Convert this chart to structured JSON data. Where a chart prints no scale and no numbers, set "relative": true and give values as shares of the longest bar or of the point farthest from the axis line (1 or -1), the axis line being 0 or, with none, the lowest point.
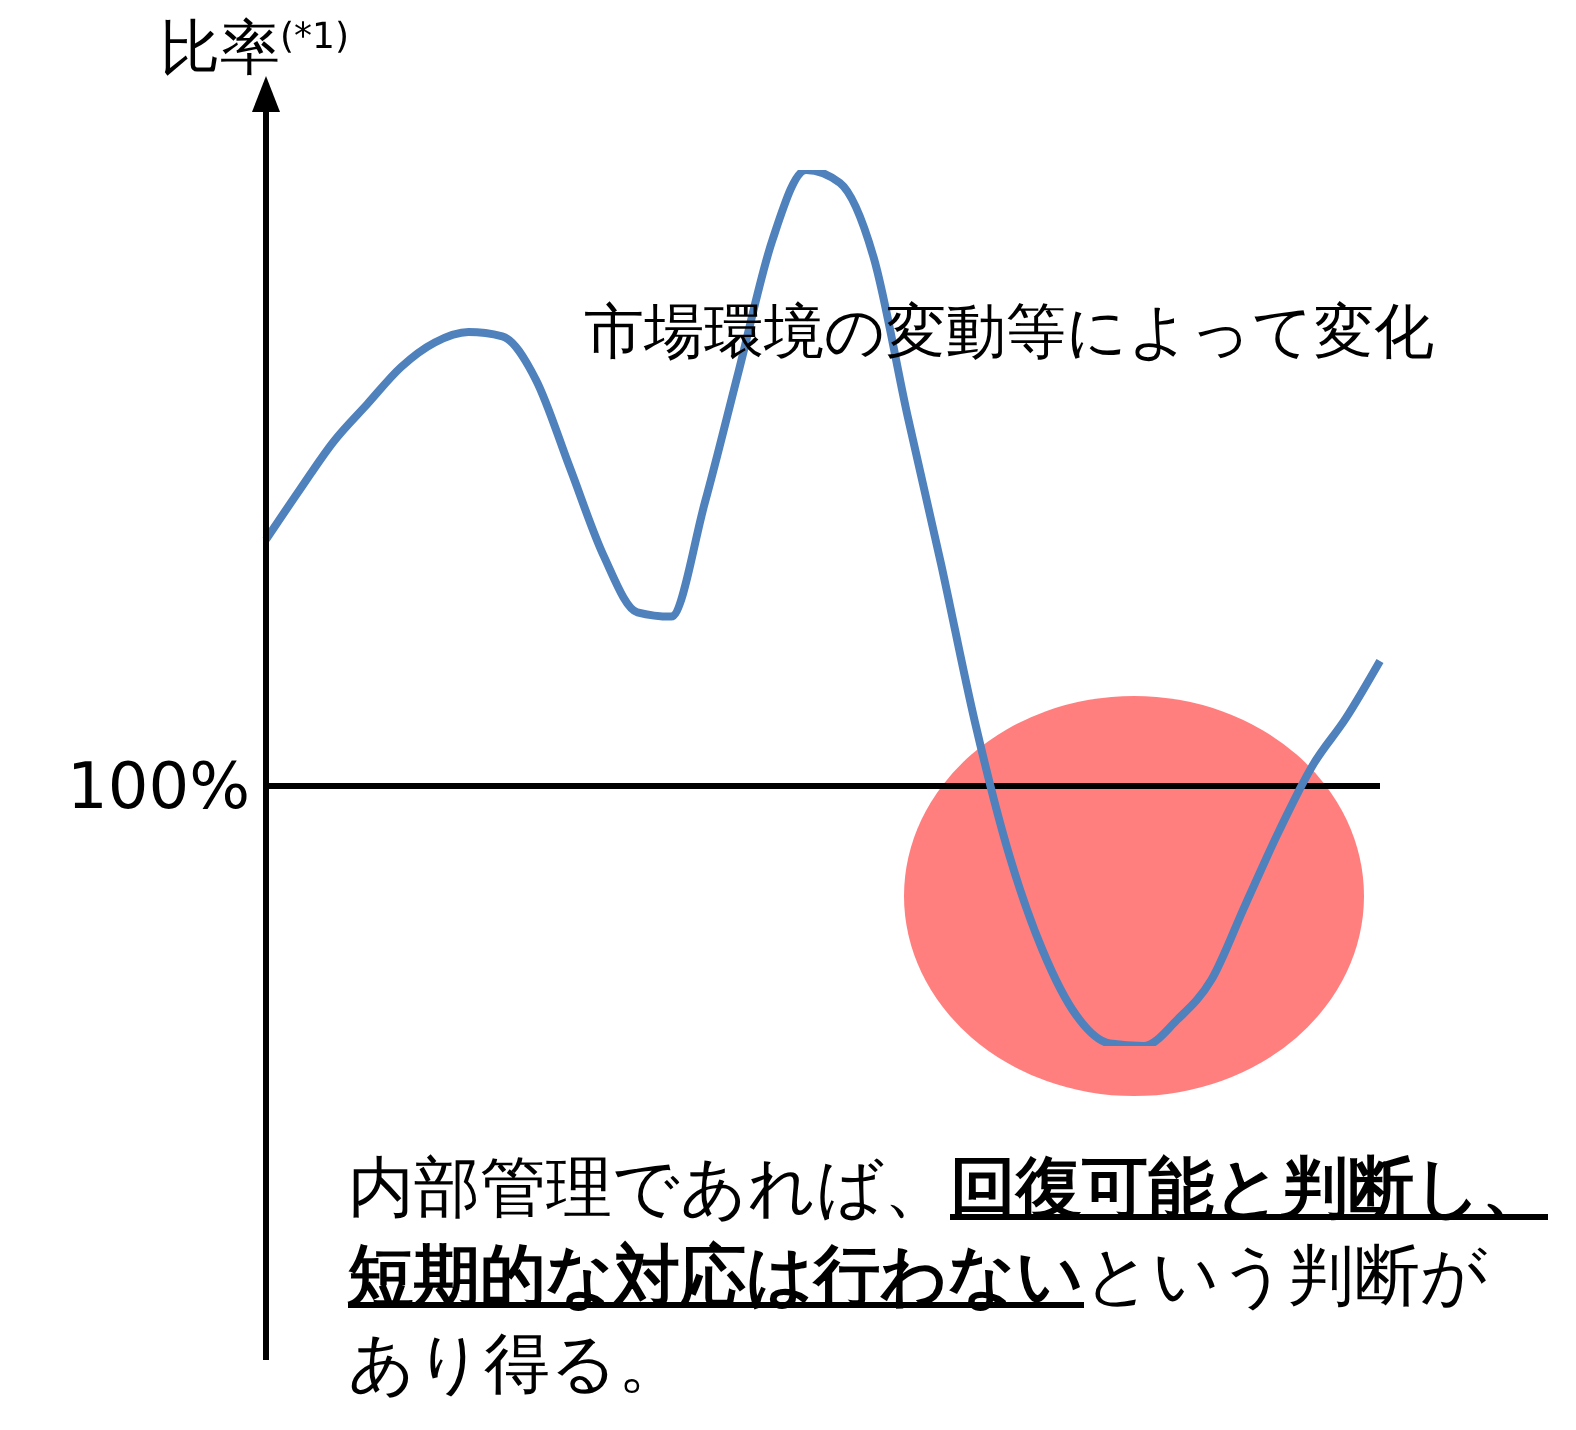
{
  "chart_data": {
    "type": "line",
    "relative": true,
    "ylabel": "比率$^{(*1)}$",
    "categories": [
      null,
      null,
      null,
      null,
      null,
      null,
      null,
      null,
      null,
      null,
      null,
      null,
      null,
      null,
      null,
      null,
      null,
      null,
      null,
      null,
      null,
      null,
      null,
      null,
      null,
      null,
      null,
      null,
      null,
      null,
      null,
      null,
      null,
      null
    ],
    "series": [
      {
        "color": "#4f81bd",
        "values": [
          0.4,
          0.481,
          0.559,
          0.62,
          0.68,
          0.72,
          0.737,
          0.73,
          0.659,
          0.517,
          0.374,
          0.282,
          0.275,
          0.46,
          0.673,
          0.886,
          1,
          0.979,
          0.858,
          0.602,
          0.36,
          0.104,
          -0.109,
          -0.266,
          -0.372,
          -0.418,
          -0.422,
          -0.379,
          -0.315,
          -0.194,
          -0.074,
          0.033,
          0.111,
          0.203
        ]
      }
    ],
    "annotations": [
      "100%",
      "市場環境の変動等によって変化",
      "内部管理であれば、",
      "回復可能と判断し、短期的な対応は行わない",
      "という判断があり得る。"
    ],
    "marker": "none"
  }
}
